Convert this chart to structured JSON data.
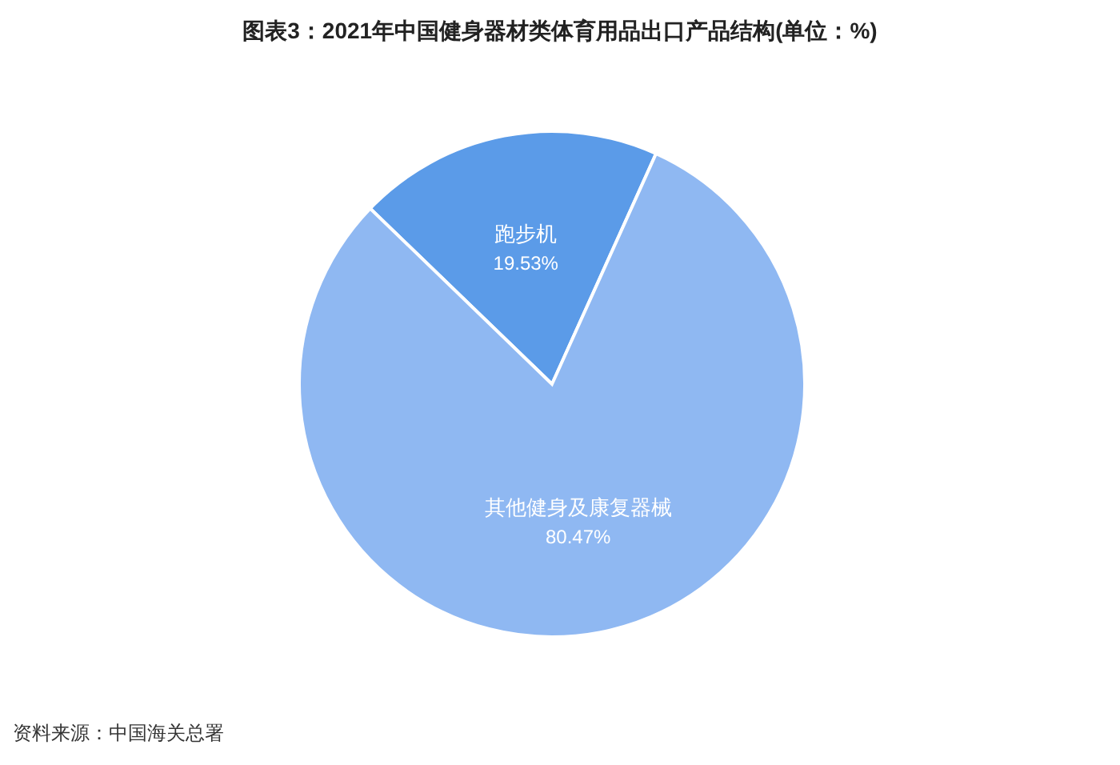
{
  "chart_data": {
    "type": "pie",
    "title": "图表3：2021年中国健身器材类体育用品出口产品结构(单位：%)",
    "categories": [
      "跑步机",
      "其他健身及康复器械"
    ],
    "values": [
      19.53,
      80.47
    ],
    "colors": [
      "#5b9be8",
      "#8fb8f2"
    ],
    "value_labels": [
      "19.53%",
      "80.47%"
    ],
    "annotations": [
      "资料来源：中国海关总署"
    ]
  }
}
